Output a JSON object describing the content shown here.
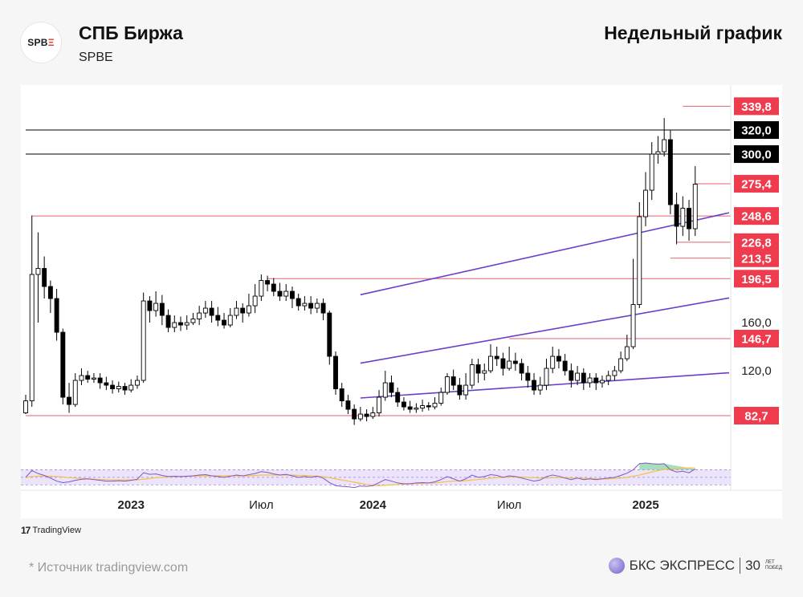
{
  "header": {
    "title": "СПБ Биржа",
    "ticker": "SPBE",
    "period": "Недельный график",
    "logo_text": "SPB",
    "logo_accent": "Ξ"
  },
  "footer": {
    "tradingview": "TradingView",
    "source": "*  Источник tradingview.com",
    "brand": "БКС ЭКСПРЕСС",
    "anniversary": "30",
    "anniversary_small_1": "ЛЕТ",
    "anniversary_small_2": "ПОБЕД"
  },
  "colors": {
    "up": "#ffffff",
    "down": "#000000",
    "level_line": "#e5606e",
    "level_badge": "#ee3b4e",
    "black_badge": "#000000",
    "channel": "#6a3fc8",
    "rsi": "#7e57c2",
    "rsi_ma": "#f5c142",
    "rsi_band": "#ece4fb"
  },
  "chart_data": {
    "type": "candlestick",
    "title": "СПБ Биржа",
    "timeframe": "weekly",
    "ylim": [
      50,
      360
    ],
    "price_scale": [
      "160,0",
      "120,0"
    ],
    "x_ticks": [
      "2023",
      "Июл",
      "2024",
      "Июл",
      "2025"
    ],
    "levels": [
      {
        "value": 339.8,
        "label": "339,8",
        "style": "red"
      },
      {
        "value": 320.0,
        "label": "320,0",
        "style": "black"
      },
      {
        "value": 300.0,
        "label": "300,0",
        "style": "black"
      },
      {
        "value": 275.4,
        "label": "275,4",
        "style": "red"
      },
      {
        "value": 248.6,
        "label": "248,6",
        "style": "red"
      },
      {
        "value": 226.8,
        "label": "226,8",
        "style": "red"
      },
      {
        "value": 213.5,
        "label": "213,5",
        "style": "red"
      },
      {
        "value": 196.5,
        "label": "196,5",
        "style": "red"
      },
      {
        "value": 146.7,
        "label": "146,7",
        "style": "red"
      },
      {
        "value": 82.7,
        "label": "82,7",
        "style": "red"
      }
    ],
    "candles": [
      [
        85,
        95,
        84,
        100
      ],
      [
        95,
        200,
        90,
        249
      ],
      [
        200,
        205,
        160,
        235
      ],
      [
        205,
        190,
        180,
        215
      ],
      [
        190,
        180,
        168,
        195
      ],
      [
        180,
        152,
        145,
        188
      ],
      [
        152,
        98,
        92,
        155
      ],
      [
        98,
        92,
        85,
        110
      ],
      [
        92,
        112,
        90,
        118
      ],
      [
        112,
        116,
        108,
        122
      ],
      [
        116,
        113,
        110,
        120
      ],
      [
        113,
        114,
        110,
        118
      ],
      [
        114,
        110,
        105,
        118
      ],
      [
        110,
        108,
        104,
        115
      ],
      [
        108,
        105,
        101,
        112
      ],
      [
        105,
        107,
        102,
        111
      ],
      [
        107,
        104,
        100,
        110
      ],
      [
        104,
        108,
        102,
        113
      ],
      [
        108,
        112,
        105,
        116
      ],
      [
        112,
        178,
        110,
        185
      ],
      [
        178,
        170,
        160,
        182
      ],
      [
        170,
        176,
        165,
        186
      ],
      [
        176,
        166,
        158,
        183
      ],
      [
        166,
        156,
        152,
        171
      ],
      [
        156,
        160,
        152,
        166
      ],
      [
        160,
        158,
        153,
        165
      ],
      [
        158,
        160,
        154,
        166
      ],
      [
        160,
        163,
        158,
        168
      ],
      [
        163,
        168,
        158,
        174
      ],
      [
        168,
        172,
        164,
        178
      ],
      [
        172,
        166,
        160,
        178
      ],
      [
        166,
        162,
        157,
        173
      ],
      [
        162,
        158,
        155,
        168
      ],
      [
        158,
        166,
        156,
        172
      ],
      [
        166,
        172,
        163,
        178
      ],
      [
        172,
        168,
        160,
        176
      ],
      [
        168,
        174,
        165,
        184
      ],
      [
        174,
        182,
        168,
        192
      ],
      [
        182,
        195,
        178,
        200
      ],
      [
        195,
        192,
        186,
        199
      ],
      [
        192,
        186,
        182,
        197
      ],
      [
        186,
        182,
        178,
        193
      ],
      [
        182,
        186,
        178,
        192
      ],
      [
        186,
        180,
        172,
        190
      ],
      [
        180,
        174,
        170,
        184
      ],
      [
        174,
        176,
        170,
        182
      ],
      [
        176,
        172,
        167,
        182
      ],
      [
        172,
        176,
        168,
        180
      ],
      [
        176,
        168,
        162,
        180
      ],
      [
        168,
        132,
        125,
        170
      ],
      [
        132,
        105,
        100,
        136
      ],
      [
        105,
        95,
        90,
        110
      ],
      [
        95,
        88,
        84,
        100
      ],
      [
        88,
        80,
        75,
        92
      ],
      [
        80,
        84,
        78,
        90
      ],
      [
        84,
        82,
        78,
        88
      ],
      [
        82,
        85,
        80,
        90
      ],
      [
        85,
        98,
        82,
        104
      ],
      [
        98,
        110,
        95,
        120
      ],
      [
        110,
        102,
        98,
        116
      ],
      [
        102,
        94,
        90,
        106
      ],
      [
        94,
        90,
        87,
        98
      ],
      [
        90,
        88,
        85,
        95
      ],
      [
        88,
        89,
        85,
        93
      ],
      [
        89,
        91,
        86,
        96
      ],
      [
        91,
        90,
        87,
        94
      ],
      [
        90,
        93,
        88,
        98
      ],
      [
        93,
        102,
        91,
        106
      ],
      [
        102,
        115,
        100,
        118
      ],
      [
        115,
        108,
        104,
        121
      ],
      [
        108,
        100,
        96,
        114
      ],
      [
        100,
        108,
        96,
        118
      ],
      [
        108,
        125,
        105,
        130
      ],
      [
        125,
        118,
        110,
        130
      ],
      [
        118,
        120,
        112,
        126
      ],
      [
        120,
        132,
        118,
        142
      ],
      [
        132,
        130,
        124,
        140
      ],
      [
        130,
        122,
        116,
        135
      ],
      [
        122,
        128,
        120,
        140
      ],
      [
        128,
        126,
        120,
        135
      ],
      [
        126,
        118,
        112,
        130
      ],
      [
        118,
        112,
        106,
        124
      ],
      [
        112,
        104,
        100,
        118
      ],
      [
        104,
        108,
        100,
        115
      ],
      [
        108,
        122,
        104,
        130
      ],
      [
        122,
        132,
        118,
        140
      ],
      [
        132,
        128,
        122,
        138
      ],
      [
        128,
        120,
        116,
        134
      ],
      [
        120,
        112,
        106,
        126
      ],
      [
        112,
        118,
        108,
        124
      ],
      [
        118,
        110,
        104,
        122
      ],
      [
        110,
        114,
        106,
        118
      ],
      [
        114,
        110,
        104,
        118
      ],
      [
        110,
        112,
        106,
        116
      ],
      [
        112,
        116,
        108,
        120
      ],
      [
        116,
        120,
        112,
        124
      ],
      [
        120,
        130,
        118,
        136
      ],
      [
        130,
        140,
        128,
        150
      ],
      [
        140,
        175,
        138,
        213
      ],
      [
        175,
        248,
        172,
        260
      ],
      [
        248,
        270,
        240,
        285
      ],
      [
        270,
        300,
        262,
        310
      ],
      [
        300,
        302,
        292,
        315
      ],
      [
        302,
        312,
        298,
        330
      ],
      [
        312,
        258,
        250,
        320
      ],
      [
        258,
        240,
        225,
        268
      ],
      [
        240,
        255,
        232,
        265
      ],
      [
        255,
        238,
        228,
        262
      ],
      [
        238,
        275,
        232,
        290
      ]
    ],
    "rsi": {
      "overbought": 70,
      "oversold": 30,
      "values": [
        50,
        68,
        60,
        55,
        48,
        40,
        36,
        38,
        42,
        45,
        46,
        44,
        42,
        40,
        40,
        41,
        40,
        42,
        45,
        62,
        58,
        59,
        55,
        52,
        53,
        52,
        53,
        54,
        56,
        57,
        54,
        52,
        50,
        53,
        56,
        54,
        57,
        60,
        65,
        63,
        59,
        56,
        58,
        54,
        50,
        52,
        50,
        53,
        48,
        36,
        28,
        26,
        25,
        23,
        27,
        26,
        28,
        36,
        44,
        40,
        35,
        33,
        33,
        35,
        36,
        35,
        38,
        44,
        52,
        46,
        40,
        46,
        56,
        50,
        52,
        57,
        55,
        50,
        54,
        52,
        48,
        44,
        40,
        43,
        52,
        56,
        53,
        48,
        44,
        48,
        44,
        46,
        44,
        46,
        48,
        50,
        55,
        61,
        70,
        86,
        88,
        86,
        85,
        86,
        70,
        64,
        66,
        62,
        72
      ],
      "ma_values": [
        50,
        52,
        53,
        53,
        53,
        52,
        51,
        49,
        48,
        47,
        46,
        45,
        44,
        44,
        43,
        43,
        43,
        43,
        43,
        45,
        47,
        49,
        50,
        51,
        52,
        52,
        53,
        53,
        54,
        54,
        54,
        54,
        54,
        54,
        54,
        54,
        54,
        55,
        56,
        56,
        56,
        56,
        56,
        56,
        55,
        55,
        54,
        53,
        52,
        49,
        46,
        43,
        40,
        37,
        34,
        31,
        29,
        28,
        29,
        30,
        31,
        32,
        33,
        34,
        34,
        35,
        35,
        37,
        39,
        40,
        40,
        41,
        43,
        44,
        46,
        48,
        49,
        50,
        51,
        51,
        51,
        50,
        49,
        48,
        48,
        49,
        49,
        49,
        48,
        48,
        47,
        47,
        46,
        46,
        46,
        47,
        48,
        50,
        53,
        56,
        60,
        64,
        68,
        71,
        72,
        73,
        74,
        75,
        75
      ]
    }
  }
}
